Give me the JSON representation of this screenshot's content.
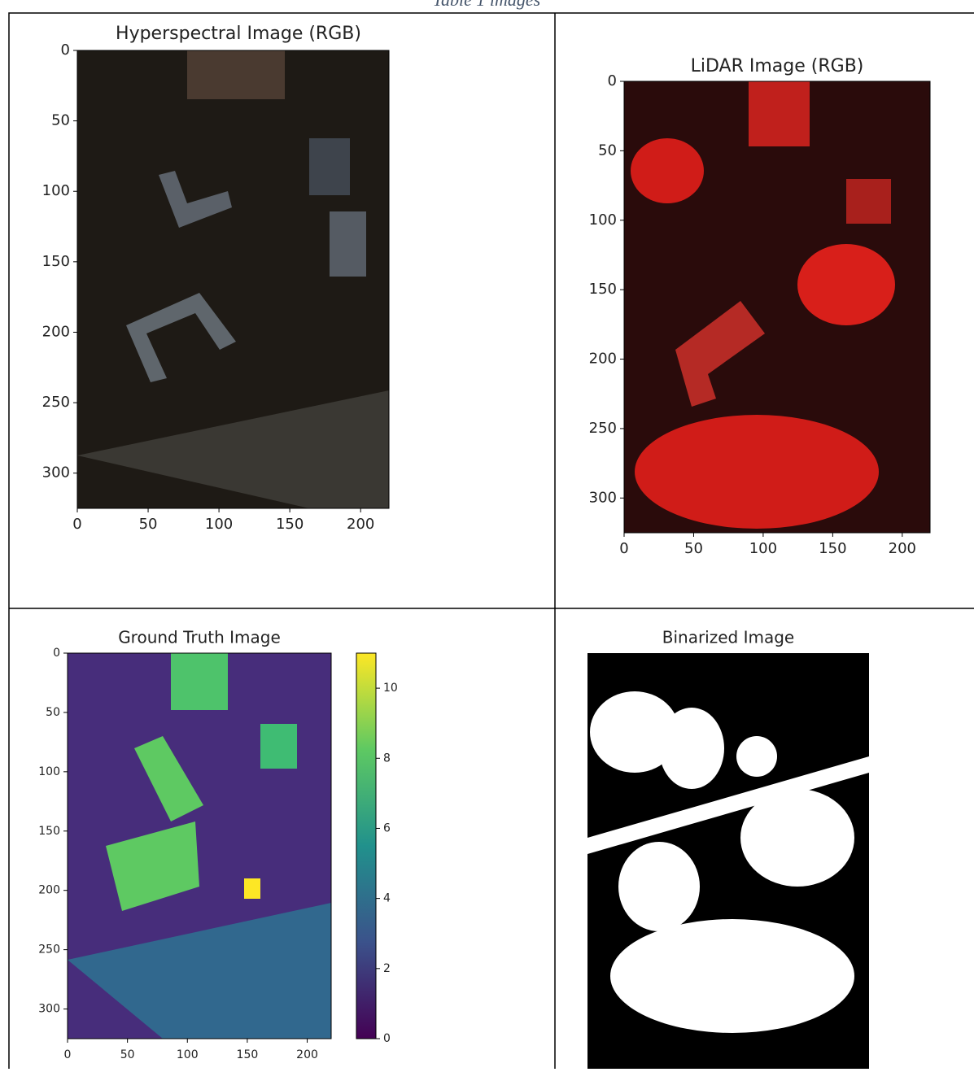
{
  "caption": "Table 1 images",
  "panels": [
    {
      "title": "Hyperspectral Image (RGB)",
      "xlim": [
        0,
        220
      ],
      "ylim": [
        0,
        325
      ],
      "xticks": [
        0,
        50,
        100,
        150,
        200
      ],
      "yticks": [
        0,
        50,
        100,
        150,
        200,
        250,
        300
      ]
    },
    {
      "title": "LiDAR Image (RGB)",
      "xlim": [
        0,
        220
      ],
      "ylim": [
        0,
        325
      ],
      "xticks": [
        0,
        50,
        100,
        150,
        200
      ],
      "yticks": [
        0,
        50,
        100,
        150,
        200,
        250,
        300
      ]
    },
    {
      "title": "Ground Truth Image",
      "xlim": [
        0,
        220
      ],
      "ylim": [
        0,
        325
      ],
      "xticks": [
        0,
        50,
        100,
        150,
        200
      ],
      "yticks": [
        0,
        50,
        100,
        150,
        200,
        250,
        300
      ],
      "clim": [
        0,
        11
      ],
      "cticks": [
        0,
        2,
        4,
        6,
        8,
        10
      ]
    },
    {
      "title": "Binarized Image"
    }
  ]
}
